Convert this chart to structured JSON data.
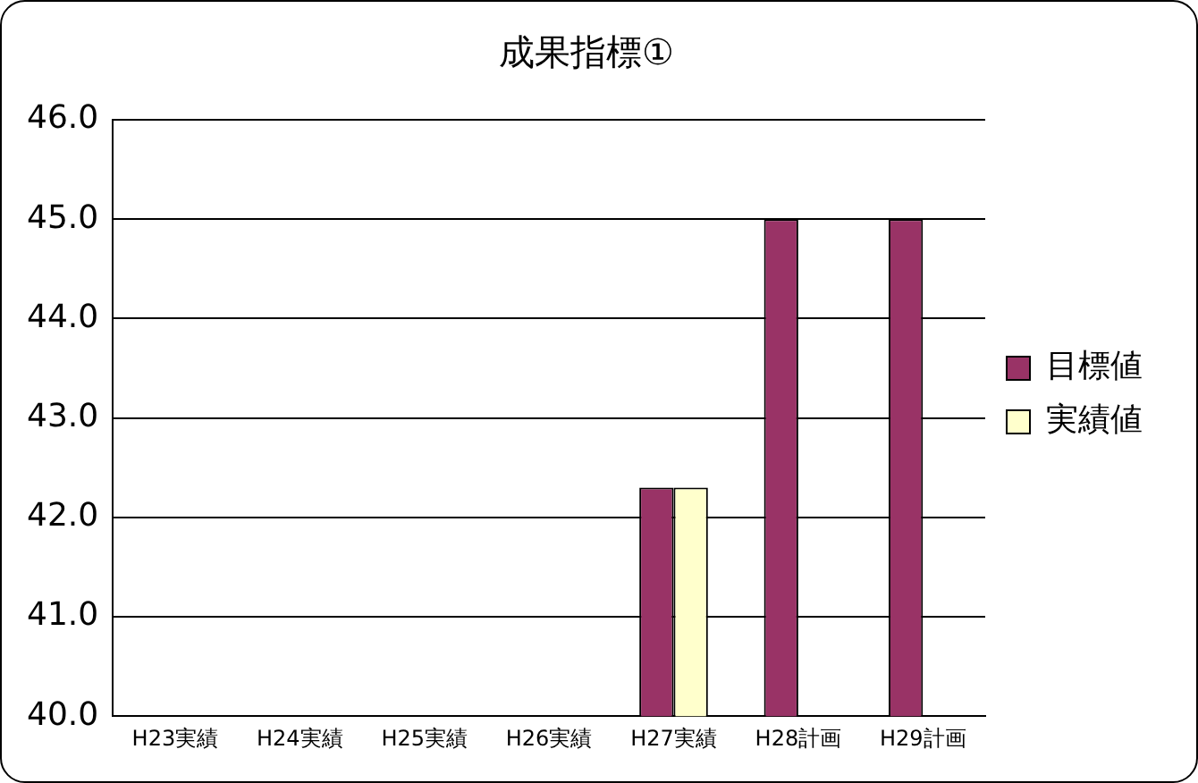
{
  "chart_data": {
    "type": "bar",
    "title": "成果指標①",
    "categories": [
      "H23実績",
      "H24実績",
      "H25実績",
      "H26実績",
      "H27実績",
      "H28計画",
      "H29計画"
    ],
    "series": [
      {
        "name": "目標値",
        "color": "#993366",
        "values": [
          null,
          null,
          null,
          null,
          42.3,
          45.0,
          45.0
        ]
      },
      {
        "name": "実績値",
        "color": "#ffffcc",
        "values": [
          null,
          null,
          null,
          null,
          42.3,
          null,
          null
        ]
      }
    ],
    "ylim": [
      40,
      46
    ],
    "yticks": [
      {
        "value": 40,
        "label": "40.0"
      },
      {
        "value": 41,
        "label": "41.0"
      },
      {
        "value": 42,
        "label": "42.0"
      },
      {
        "value": 43,
        "label": "43.0"
      },
      {
        "value": 44,
        "label": "44.0"
      },
      {
        "value": 45,
        "label": "45.0"
      },
      {
        "value": 46,
        "label": "46.0"
      }
    ],
    "grid": "y",
    "legend": "right"
  }
}
